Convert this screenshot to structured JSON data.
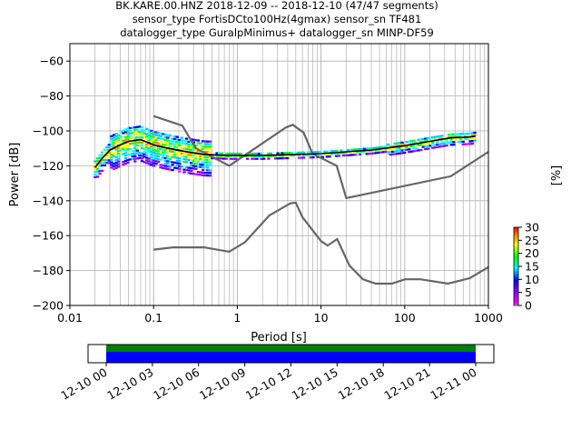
{
  "chart_data": [
    {
      "type": "line",
      "title_lines": [
        "BK.KARE.00.HNZ   2018-12-09 -- 2018-12-10  (47/47 segments)",
        "sensor_type FortisDCto100Hz(4gmax) sensor_sn TF481",
        "datalogger_type GuralpMinimus+ datalogger_sn MINP-DF59"
      ],
      "xlabel": "Period [s]",
      "ylabel": "Power [dB]",
      "xscale": "log",
      "xlim": [
        0.01,
        1000
      ],
      "ylim": [
        -200,
        -50
      ],
      "grid": true,
      "x_ticks": [
        {
          "v": 0.01,
          "label": "0.01"
        },
        {
          "v": 0.1,
          "label": "0.1"
        },
        {
          "v": 1,
          "label": "1"
        },
        {
          "v": 10,
          "label": "10"
        },
        {
          "v": 100,
          "label": "100"
        },
        {
          "v": 1000,
          "label": "1000"
        }
      ],
      "y_ticks": [
        {
          "v": -60,
          "label": "−60"
        },
        {
          "v": -80,
          "label": "−80"
        },
        {
          "v": -100,
          "label": "−100"
        },
        {
          "v": -120,
          "label": "−120"
        },
        {
          "v": -140,
          "label": "−140"
        },
        {
          "v": -160,
          "label": "−160"
        },
        {
          "v": -180,
          "label": "−180"
        },
        {
          "v": -200,
          "label": "−200"
        }
      ],
      "noise_models": [
        {
          "points": [
            [
              0.1,
              -91.5
            ],
            [
              0.22,
              -97
            ],
            [
              0.32,
              -110
            ],
            [
              0.8,
              -120
            ],
            [
              3.8,
              -98
            ],
            [
              4.6,
              -96.5
            ],
            [
              6.2,
              -101
            ],
            [
              7.9,
              -113
            ],
            [
              15.4,
              -120
            ],
            [
              20,
              -138.5
            ],
            [
              354.8,
              -126
            ],
            [
              1000,
              -112
            ]
          ]
        },
        {
          "points": [
            [
              0.1,
              -168
            ],
            [
              0.17,
              -166.7
            ],
            [
              0.4,
              -166.7
            ],
            [
              0.8,
              -169.2
            ],
            [
              1.24,
              -163.7
            ],
            [
              2.4,
              -148.5
            ],
            [
              4.3,
              -141.5
            ],
            [
              5,
              -141.1
            ],
            [
              6,
              -149.4
            ],
            [
              10,
              -163.1
            ],
            [
              12,
              -165.7
            ],
            [
              15.6,
              -162
            ],
            [
              21.9,
              -177.2
            ],
            [
              31.6,
              -185
            ],
            [
              45,
              -187.5
            ],
            [
              70,
              -187.5
            ],
            [
              101,
              -185
            ],
            [
              154,
              -185
            ],
            [
              328,
              -187.5
            ],
            [
              600,
              -184.4
            ],
            [
              1000,
              -178
            ]
          ]
        }
      ],
      "mode_curve": [
        [
          0.02,
          -121
        ],
        [
          0.025,
          -115
        ],
        [
          0.03,
          -111
        ],
        [
          0.04,
          -108
        ],
        [
          0.05,
          -106
        ],
        [
          0.07,
          -105
        ],
        [
          0.1,
          -108
        ],
        [
          0.15,
          -110
        ],
        [
          0.25,
          -112
        ],
        [
          0.4,
          -113.5
        ],
        [
          0.8,
          -114
        ],
        [
          2,
          -114
        ],
        [
          5,
          -113.5
        ],
        [
          10,
          -113
        ],
        [
          20,
          -112
        ],
        [
          40,
          -111
        ],
        [
          70,
          -109.5
        ],
        [
          100,
          -108.5
        ],
        [
          200,
          -106
        ],
        [
          350,
          -104
        ],
        [
          600,
          -103.5
        ],
        [
          700,
          -103
        ]
      ],
      "colorbar": {
        "label": "[%]",
        "min": 0,
        "max": 30,
        "ticks": [
          "0",
          "5",
          "10",
          "15",
          "20",
          "25",
          "30"
        ]
      }
    },
    {
      "type": "timeline",
      "tick_labels": [
        "12-10 00",
        "12-10 03",
        "12-10 06",
        "12-10 09",
        "12-10 12",
        "12-10 15",
        "12-10 18",
        "12-10 21",
        "12-11 00"
      ],
      "coverage_colors": {
        "top": "#008000",
        "bottom": "#0000ff"
      }
    }
  ]
}
